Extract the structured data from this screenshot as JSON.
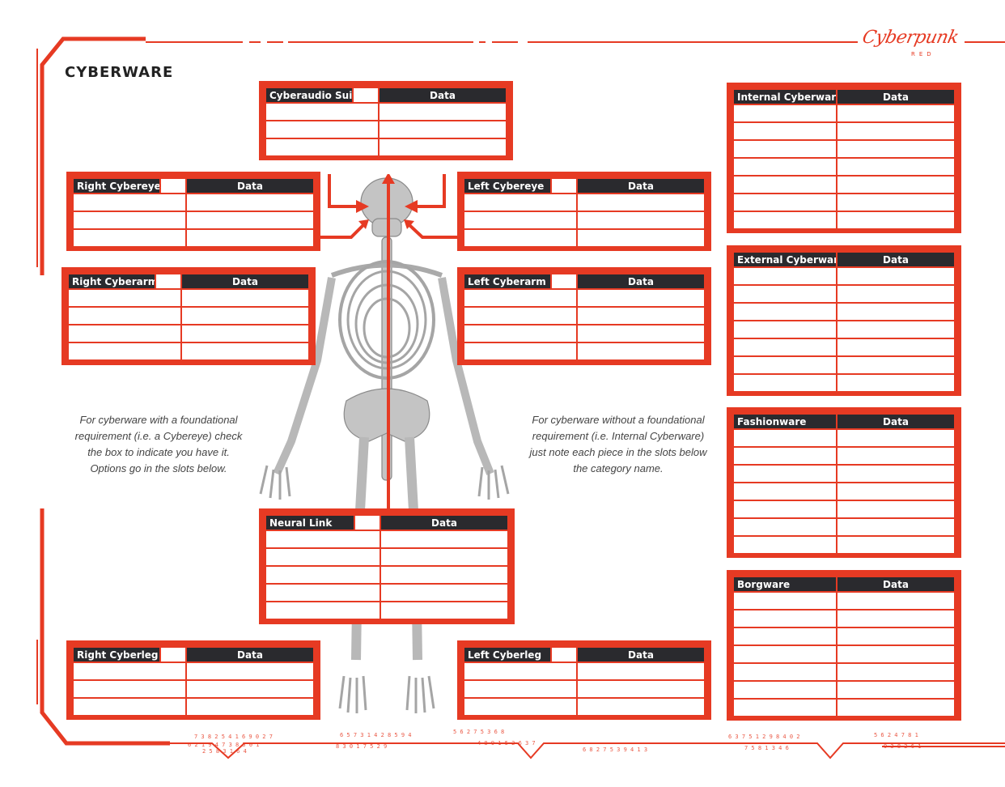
{
  "page": {
    "title": "CYBERWARE",
    "logo_text": "Cyberpunk",
    "logo_sub": "RED"
  },
  "notes": {
    "left": "For cyberware with a foundational requirement (i.e. a Cybereye) check the box to indicate you have it. Options go in the slots below.",
    "right": "For cyberware without a foundational requirement (i.e. Internal Cyberware) just note each piece in the slots below the category name."
  },
  "boxes": {
    "cyberaudio": {
      "title": "Cyberaudio Suite",
      "data_label": "Data"
    },
    "right_cybereye": {
      "title": "Right Cybereye",
      "data_label": "Data"
    },
    "left_cybereye": {
      "title": "Left Cybereye",
      "data_label": "Data"
    },
    "right_cyberarm": {
      "title": "Right Cyberarm",
      "data_label": "Data"
    },
    "left_cyberarm": {
      "title": "Left Cyberarm",
      "data_label": "Data"
    },
    "neural_link": {
      "title": "Neural Link",
      "data_label": "Data"
    },
    "right_cyberleg": {
      "title": "Right Cyberleg",
      "data_label": "Data"
    },
    "left_cyberleg": {
      "title": "Left Cyberleg",
      "data_label": "Data"
    },
    "internal": {
      "title": "Internal Cyberware",
      "data_label": "Data"
    },
    "external": {
      "title": "External Cyberware",
      "data_label": "Data"
    },
    "fashionware": {
      "title": "Fashionware",
      "data_label": "Data"
    },
    "borgware": {
      "title": "Borgware",
      "data_label": "Data"
    }
  },
  "colors": {
    "accent": "#e63a23",
    "header": "#2a2a2e",
    "bone": "#bdbdbd"
  }
}
